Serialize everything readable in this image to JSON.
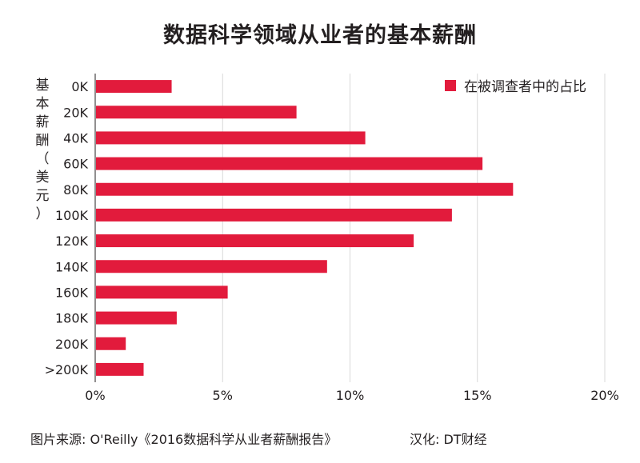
{
  "chart_data": {
    "type": "bar",
    "orientation": "horizontal",
    "title": "数据科学领域从业者的基本薪酬",
    "ylabel": "基本薪酬（美元）",
    "categories": [
      "0K",
      "20K",
      "40K",
      "60K",
      "80K",
      "100K",
      "120K",
      "140K",
      "160K",
      "180K",
      "200K",
      ">200K"
    ],
    "series": [
      {
        "name": "在被调查者中的占比",
        "values": [
          3.0,
          7.9,
          10.6,
          15.2,
          16.4,
          14.0,
          12.5,
          9.1,
          5.2,
          3.2,
          1.2,
          1.9
        ]
      }
    ],
    "x_ticks": [
      "0%",
      "5%",
      "10%",
      "15%",
      "20%"
    ],
    "xlim": [
      0,
      20
    ],
    "grid": "vertical",
    "legend": "top-right",
    "color": "#e21b3c"
  },
  "footer": {
    "source": "图片来源: O'Reilly《2016数据科学从业者薪酬报告》",
    "credit": "汉化: DT财经"
  }
}
